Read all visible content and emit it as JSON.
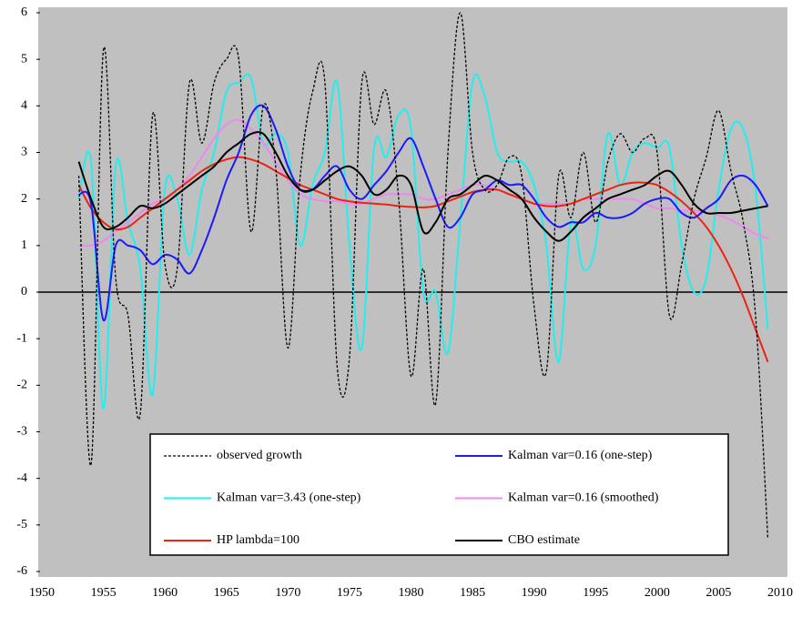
{
  "chart_data": {
    "type": "line",
    "x": [
      1953,
      1954,
      1955,
      1956,
      1957,
      1958,
      1959,
      1960,
      1961,
      1962,
      1963,
      1964,
      1965,
      1966,
      1967,
      1968,
      1969,
      1970,
      1971,
      1972,
      1973,
      1974,
      1975,
      1976,
      1977,
      1978,
      1979,
      1980,
      1981,
      1982,
      1983,
      1984,
      1985,
      1986,
      1987,
      1988,
      1989,
      1990,
      1991,
      1992,
      1993,
      1994,
      1995,
      1996,
      1997,
      1998,
      1999,
      2000,
      2001,
      2002,
      2003,
      2004,
      2005,
      2006,
      2007,
      2008,
      2009
    ],
    "series": [
      {
        "name": "observed growth",
        "color": "#000000",
        "dashed": true,
        "values": [
          2.5,
          -3.7,
          5.2,
          0.3,
          -0.5,
          -2.6,
          3.8,
          0.6,
          0.5,
          4.5,
          3.2,
          4.5,
          5.0,
          5.0,
          1.3,
          4.0,
          2.7,
          -1.2,
          2.5,
          4.3,
          4.5,
          -1.6,
          -1.4,
          4.5,
          3.6,
          4.3,
          2.0,
          -1.8,
          0.5,
          -2.4,
          3.0,
          6.0,
          3.0,
          2.2,
          2.3,
          2.9,
          2.5,
          -0.3,
          -1.7,
          2.5,
          1.6,
          3.0,
          1.5,
          2.8,
          3.4,
          3.0,
          3.3,
          3.0,
          -0.5,
          0.6,
          2.0,
          2.9,
          3.9,
          2.6,
          1.5,
          -0.5,
          -5.3
        ]
      },
      {
        "name": "Kalman var=0.16 (one-step)",
        "color": "#1a1aff",
        "dashed": false,
        "values": [
          2.1,
          1.9,
          -0.6,
          1.0,
          1.0,
          0.9,
          0.6,
          0.8,
          0.7,
          0.4,
          0.9,
          1.6,
          2.4,
          3.0,
          3.8,
          4.0,
          3.5,
          2.7,
          2.2,
          2.2,
          2.5,
          2.7,
          2.2,
          2.0,
          2.3,
          2.6,
          3.0,
          3.3,
          2.7,
          2.0,
          1.4,
          1.6,
          2.1,
          2.2,
          2.4,
          2.3,
          2.3,
          2.0,
          1.6,
          1.4,
          1.5,
          1.5,
          1.7,
          1.6,
          1.6,
          1.7,
          1.9,
          2.0,
          2.0,
          1.7,
          1.6,
          1.8,
          2.0,
          2.4,
          2.5,
          2.3,
          1.85
        ]
      },
      {
        "name": "Kalman var=3.43 (one-step)",
        "color": "#22eeee",
        "dashed": false,
        "values": [
          2.0,
          2.8,
          -2.5,
          2.7,
          1.5,
          0.5,
          -2.2,
          2.2,
          2.0,
          0.8,
          2.2,
          3.0,
          4.3,
          4.5,
          4.6,
          3.2,
          3.4,
          3.0,
          1.0,
          2.3,
          3.0,
          4.5,
          1.0,
          -1.2,
          3.1,
          2.9,
          3.8,
          3.5,
          0.0,
          0.0,
          -1.3,
          1.5,
          4.5,
          4.2,
          3.0,
          2.8,
          2.8,
          2.3,
          1.0,
          -1.5,
          1.5,
          0.5,
          1.0,
          3.4,
          2.3,
          3.0,
          3.2,
          3.1,
          3.1,
          1.0,
          0.0,
          0.3,
          2.2,
          3.5,
          3.5,
          2.2,
          -0.8
        ]
      },
      {
        "name": "Kalman var=0.16 (smoothed)",
        "color": "#ee88ee",
        "dashed": false,
        "values": [
          1.0,
          1.0,
          1.1,
          1.3,
          1.5,
          1.7,
          1.9,
          2.0,
          2.2,
          2.5,
          2.9,
          3.3,
          3.6,
          3.7,
          3.5,
          3.2,
          2.8,
          2.4,
          2.1,
          2.0,
          1.95,
          1.95,
          1.9,
          1.9,
          2.0,
          2.1,
          2.1,
          2.1,
          2.0,
          2.0,
          2.1,
          2.2,
          2.3,
          2.3,
          2.2,
          2.1,
          2.0,
          1.9,
          1.9,
          1.9,
          1.9,
          2.0,
          2.0,
          2.0,
          2.0,
          2.0,
          1.9,
          1.8,
          1.8,
          1.75,
          1.75,
          1.7,
          1.65,
          1.55,
          1.4,
          1.25,
          1.15
        ]
      },
      {
        "name": "HP lambda=100",
        "color": "#ee2211",
        "dashed": false,
        "values": [
          2.3,
          1.8,
          1.5,
          1.35,
          1.4,
          1.6,
          1.8,
          2.0,
          2.2,
          2.4,
          2.6,
          2.75,
          2.85,
          2.9,
          2.85,
          2.75,
          2.6,
          2.45,
          2.3,
          2.2,
          2.1,
          2.0,
          1.95,
          1.92,
          1.9,
          1.88,
          1.85,
          1.83,
          1.82,
          1.85,
          1.95,
          2.05,
          2.15,
          2.2,
          2.2,
          2.1,
          2.0,
          1.9,
          1.85,
          1.85,
          1.9,
          2.0,
          2.1,
          2.2,
          2.3,
          2.35,
          2.35,
          2.3,
          2.15,
          1.95,
          1.7,
          1.4,
          1.0,
          0.5,
          -0.1,
          -0.8,
          -1.5
        ]
      },
      {
        "name": "CBO estimate",
        "color": "#000000",
        "dashed": false,
        "values": [
          2.8,
          2.0,
          1.4,
          1.4,
          1.6,
          1.85,
          1.8,
          1.9,
          2.1,
          2.3,
          2.5,
          2.7,
          3.0,
          3.2,
          3.4,
          3.4,
          3.0,
          2.5,
          2.2,
          2.2,
          2.4,
          2.6,
          2.7,
          2.5,
          2.1,
          2.2,
          2.5,
          2.3,
          1.3,
          1.5,
          2.0,
          2.1,
          2.3,
          2.5,
          2.4,
          2.2,
          2.0,
          1.6,
          1.3,
          1.1,
          1.3,
          1.6,
          1.8,
          2.0,
          2.1,
          2.2,
          2.3,
          2.5,
          2.6,
          2.3,
          1.9,
          1.7,
          1.7,
          1.7,
          1.75,
          1.8,
          1.85
        ]
      }
    ],
    "xlim": [
      1950,
      2010
    ],
    "xticks": [
      1950,
      1955,
      1960,
      1965,
      1970,
      1975,
      1980,
      1985,
      1990,
      1995,
      2000,
      2005,
      2010
    ],
    "ylim": [
      -6,
      6
    ],
    "yticks": [
      -6,
      -5,
      -4,
      -3,
      -2,
      -1,
      0,
      1,
      2,
      3,
      4,
      5,
      6
    ],
    "grid": false,
    "legend": "bottom"
  }
}
